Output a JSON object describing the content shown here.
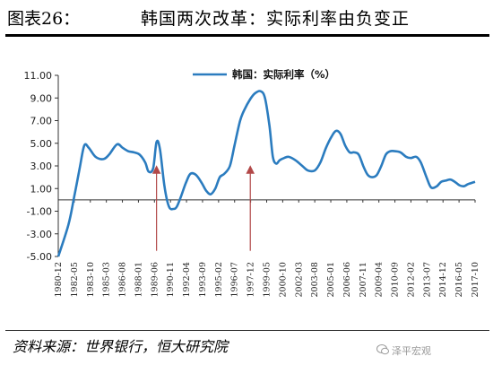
{
  "header": {
    "figure_number": "图表26：",
    "title": "韩国两次改革：实际利率由负变正"
  },
  "footer": {
    "source": "资料来源：世界银行，恒大研究院",
    "watermark": "泽平宏观"
  },
  "colors": {
    "series": "#2b7cbf",
    "arrow": "#b24848",
    "axis": "#333333"
  },
  "chart_data": {
    "type": "line",
    "ylim": [
      -5,
      11
    ],
    "y_ticks": [
      "11.00",
      "9.00",
      "7.00",
      "5.00",
      "3.00",
      "1.00",
      "-1.00",
      "-3.00",
      "-5.00"
    ],
    "y_tick_values": [
      11,
      9,
      7,
      5,
      3,
      1,
      -1,
      -3,
      -5
    ],
    "x_tick_labels": [
      "1980-12",
      "1982-05",
      "1983-10",
      "1985-03",
      "1986-08",
      "1988-01",
      "1989-06",
      "1990-11",
      "1992-04",
      "1993-09",
      "1995-02",
      "1996-07",
      "1997-12",
      "1999-05",
      "2000-10",
      "2002-03",
      "2003-08",
      "2005-01",
      "2006-06",
      "2007-11",
      "2009-04",
      "2010-09",
      "2012-02",
      "2013-07",
      "2014-12",
      "2016-05",
      "2017-10"
    ],
    "grid": false,
    "legend_position": "top-center",
    "series": [
      {
        "name": "韩国：实际利率（%）",
        "x": [
          1980.9,
          1981.8,
          1982.3,
          1982.8,
          1983.2,
          1983.6,
          1984.2,
          1984.9,
          1985.4,
          1986.1,
          1986.6,
          1987.1,
          1987.6,
          1988.1,
          1988.6,
          1988.9,
          1989.3,
          1989.6,
          1989.9,
          1990.3,
          1990.7,
          1991.1,
          1991.4,
          1991.8,
          1992.2,
          1992.6,
          1993.1,
          1993.6,
          1994.0,
          1994.4,
          1994.8,
          1995.2,
          1995.6,
          1996.1,
          1996.5,
          1997.0,
          1997.4,
          1997.9,
          1998.3,
          1998.8,
          1999.2,
          1999.6,
          1999.9,
          2000.2,
          2000.5,
          2000.9,
          2001.3,
          2001.9,
          2002.5,
          2003.0,
          2003.6,
          2004.1,
          2004.6,
          2005.1,
          2005.5,
          2005.9,
          2006.3,
          2006.7,
          2007.1,
          2007.5,
          2007.9,
          2008.3,
          2008.7,
          2009.1,
          2009.5,
          2009.9,
          2010.3,
          2010.7,
          2011.2,
          2011.7,
          2012.1,
          2012.6,
          2013.0,
          2013.5,
          2013.9,
          2014.4,
          2014.8,
          2015.2,
          2015.6,
          2016.0,
          2016.4,
          2016.8,
          2017.2,
          2017.8
        ],
        "values": [
          -5.0,
          -2.2,
          0.2,
          2.8,
          4.8,
          4.6,
          3.8,
          3.6,
          4.0,
          4.9,
          4.6,
          4.3,
          4.2,
          4.0,
          3.3,
          2.5,
          2.8,
          5.1,
          4.5,
          1.2,
          -0.6,
          -0.8,
          -0.6,
          0.4,
          1.5,
          2.3,
          2.2,
          1.5,
          0.8,
          0.5,
          1.0,
          2.0,
          2.3,
          3.0,
          4.8,
          7.0,
          8.0,
          8.9,
          9.4,
          9.6,
          9.0,
          6.5,
          3.8,
          3.2,
          3.5,
          3.7,
          3.8,
          3.5,
          3.0,
          2.6,
          2.6,
          3.3,
          4.6,
          5.6,
          6.1,
          5.8,
          4.8,
          4.2,
          4.2,
          4.0,
          3.0,
          2.2,
          2.0,
          2.2,
          3.0,
          4.0,
          4.3,
          4.3,
          4.2,
          3.8,
          3.7,
          3.8,
          3.3,
          2.0,
          1.1,
          1.2,
          1.6,
          1.7,
          1.8,
          1.6,
          1.3,
          1.2,
          1.4,
          1.6
        ]
      }
    ],
    "annotations": [
      {
        "type": "arrow",
        "x": 1989.6,
        "y_from": -4.5,
        "y_to": 3.0
      },
      {
        "type": "arrow",
        "x": 1997.9,
        "y_from": -4.5,
        "y_to": 3.0
      }
    ]
  }
}
